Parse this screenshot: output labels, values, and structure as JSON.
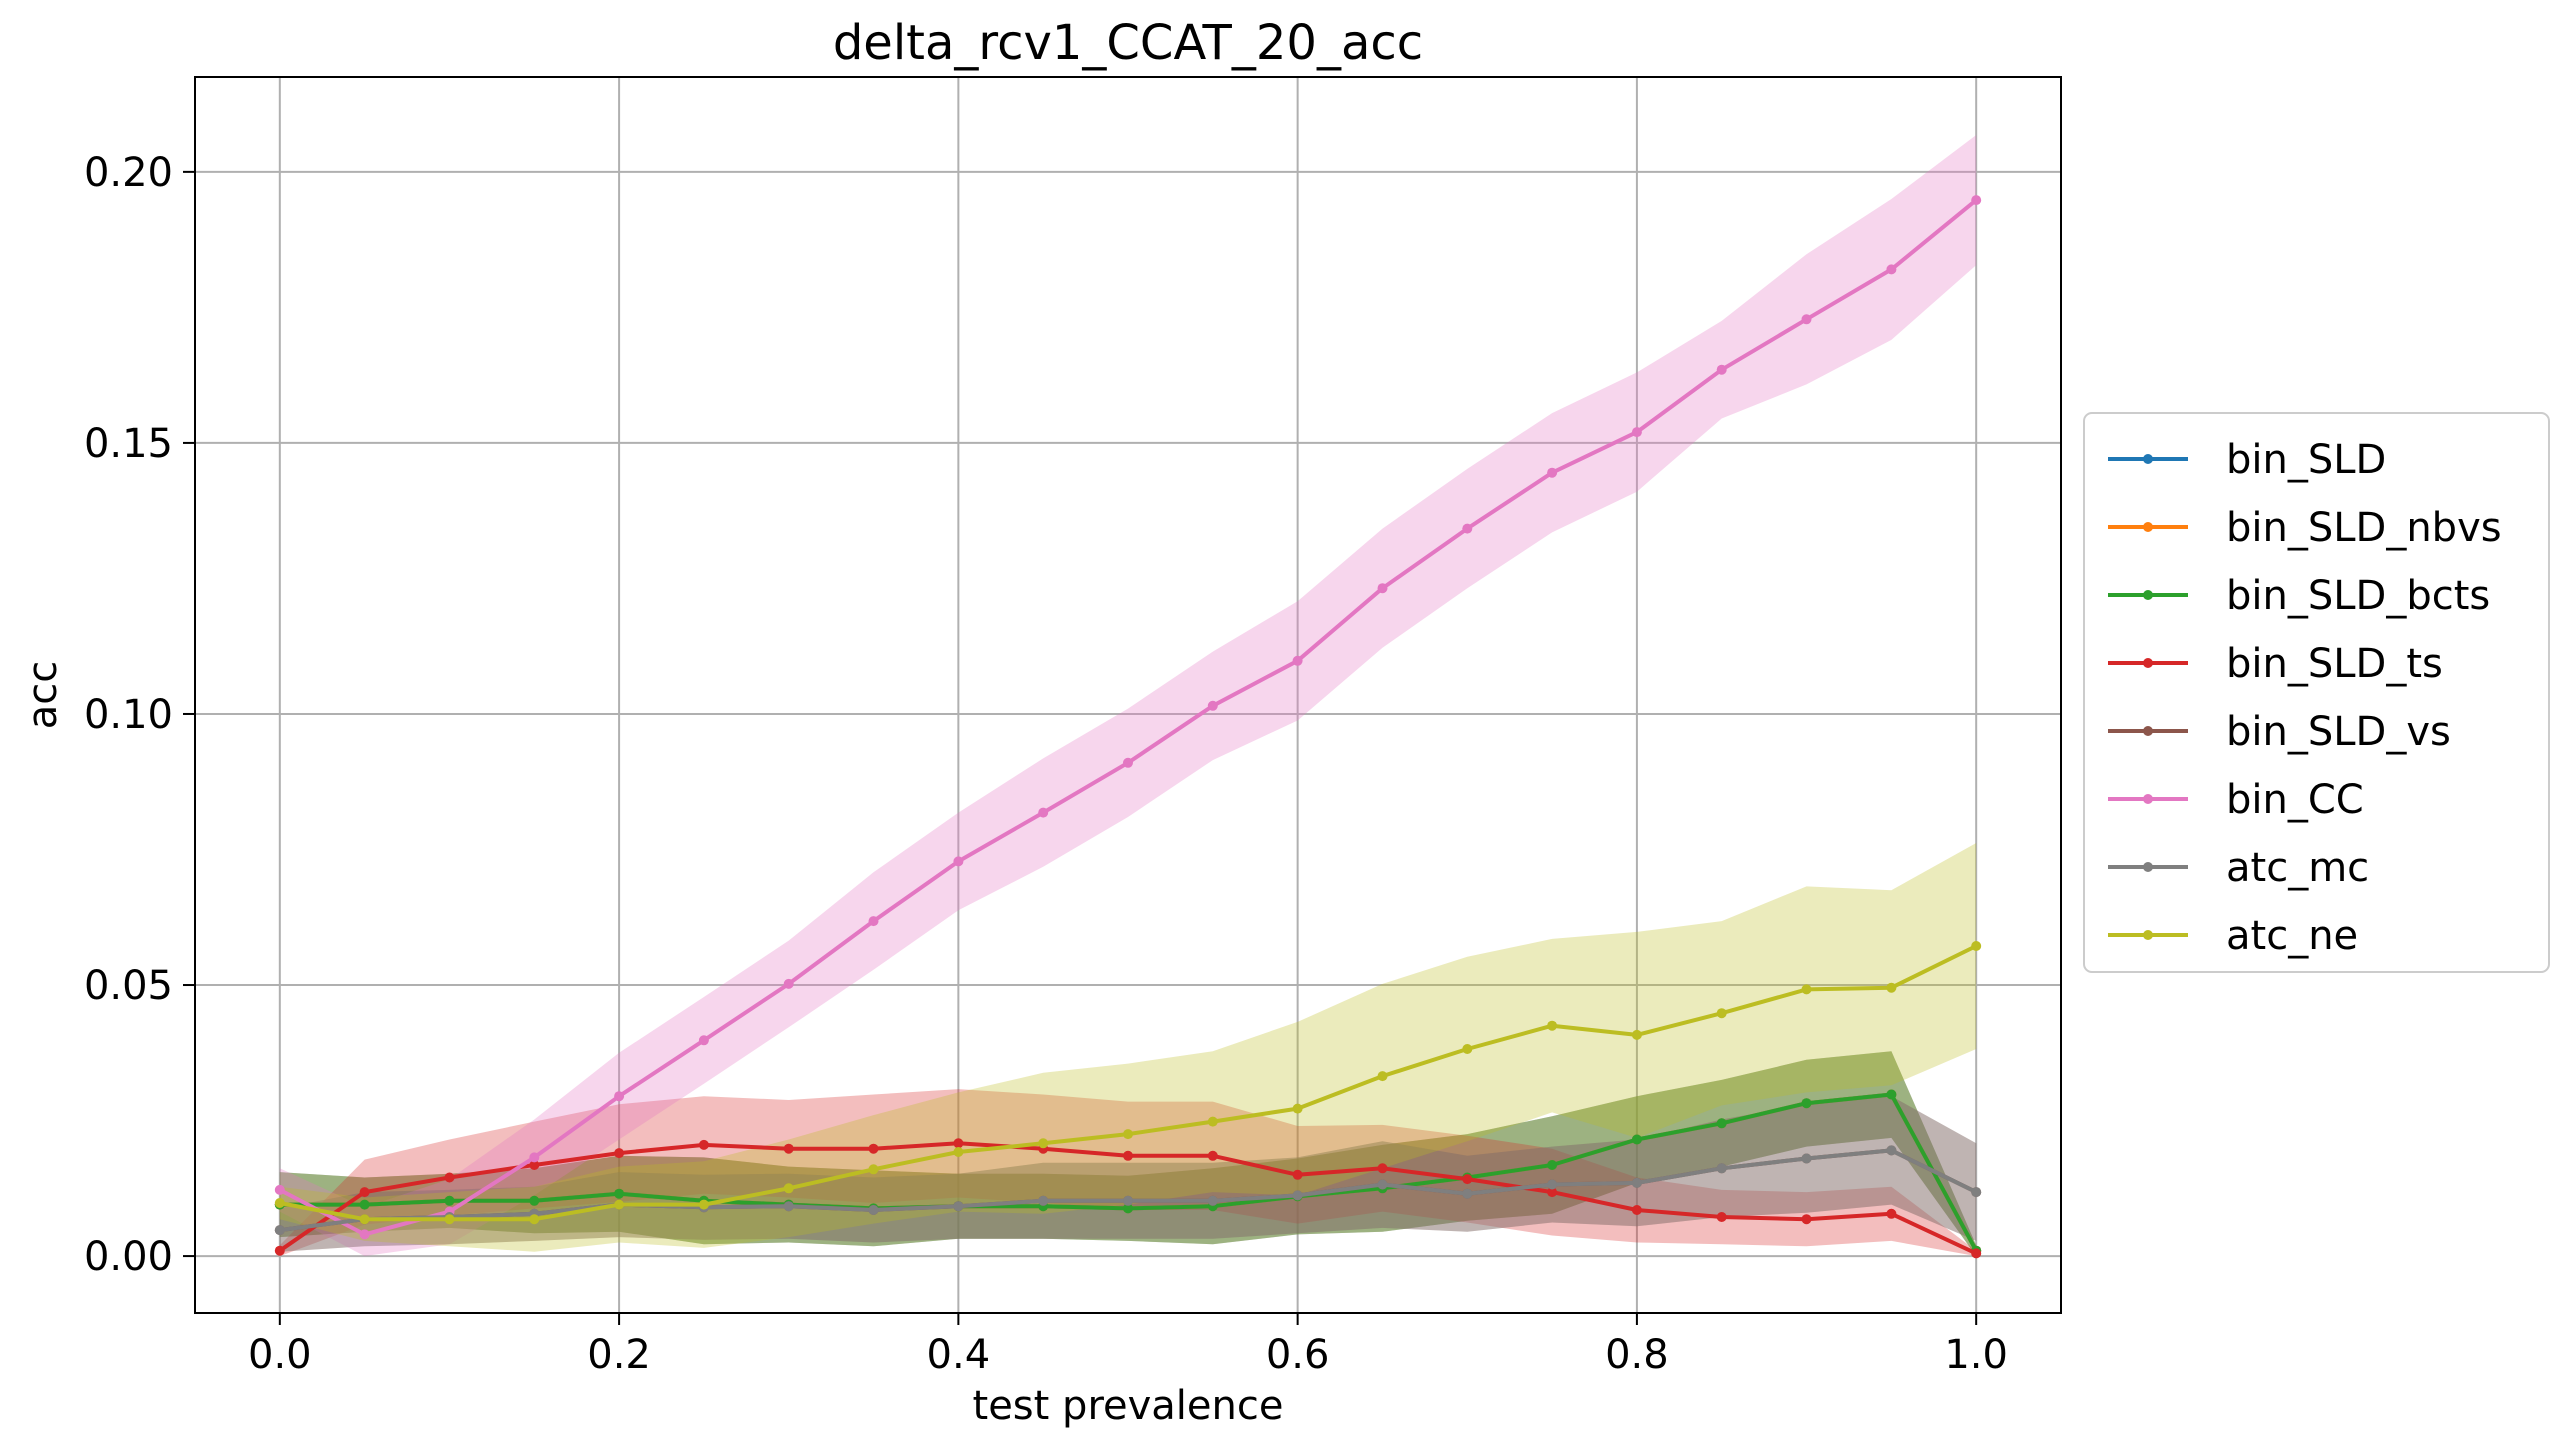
{
  "chart_data": {
    "type": "line",
    "title": "delta_rcv1_CCAT_20_acc",
    "xlabel": "test prevalence",
    "ylabel": "acc",
    "xlim": [
      -0.05,
      1.05
    ],
    "ylim": [
      -0.0105,
      0.2175
    ],
    "xticks": [
      0.0,
      0.2,
      0.4,
      0.6,
      0.8,
      1.0
    ],
    "xtick_labels": [
      "0.0",
      "0.2",
      "0.4",
      "0.6",
      "0.8",
      "1.0"
    ],
    "yticks": [
      0.0,
      0.05,
      0.1,
      0.15,
      0.2
    ],
    "ytick_labels": [
      "0.00",
      "0.05",
      "0.10",
      "0.15",
      "0.20"
    ],
    "grid": true,
    "legend_position": "center-right-outside",
    "x": [
      0.0,
      0.05,
      0.1,
      0.15,
      0.2,
      0.25,
      0.3,
      0.35,
      0.4,
      0.45,
      0.5,
      0.55,
      0.6,
      0.65,
      0.7,
      0.75,
      0.8,
      0.85,
      0.9,
      0.95,
      1.0
    ],
    "series": [
      {
        "name": "bin_SLD",
        "color": "#1f77b4",
        "values": [
          0.0095,
          0.0095,
          0.0102,
          0.0102,
          0.0115,
          0.0102,
          0.0095,
          0.0088,
          0.0092,
          0.0092,
          0.0088,
          0.0092,
          0.011,
          0.0125,
          0.0145,
          0.0168,
          0.0215,
          0.0245,
          0.0282,
          0.0298,
          0.001
        ],
        "band": [
          0.006,
          0.005,
          0.005,
          0.006,
          0.007,
          0.008,
          0.007,
          0.007,
          0.006,
          0.006,
          0.006,
          0.007,
          0.007,
          0.008,
          0.008,
          0.009,
          0.008,
          0.008,
          0.008,
          0.008,
          0.001
        ]
      },
      {
        "name": "bin_SLD_nbvs",
        "color": "#ff7f0e",
        "values": [
          0.0095,
          0.0095,
          0.0102,
          0.0102,
          0.0115,
          0.0102,
          0.0095,
          0.0088,
          0.0092,
          0.0092,
          0.0088,
          0.0092,
          0.011,
          0.0125,
          0.0145,
          0.0168,
          0.0215,
          0.0245,
          0.0282,
          0.0298,
          0.001
        ],
        "band": [
          0.006,
          0.005,
          0.005,
          0.006,
          0.007,
          0.008,
          0.007,
          0.007,
          0.006,
          0.006,
          0.006,
          0.007,
          0.007,
          0.008,
          0.008,
          0.009,
          0.008,
          0.008,
          0.008,
          0.008,
          0.001
        ]
      },
      {
        "name": "bin_SLD_bcts",
        "color": "#2ca02c",
        "values": [
          0.0095,
          0.0095,
          0.0102,
          0.0102,
          0.0115,
          0.0102,
          0.0095,
          0.0088,
          0.0092,
          0.0092,
          0.0088,
          0.0092,
          0.011,
          0.0125,
          0.0145,
          0.0168,
          0.0215,
          0.0245,
          0.0282,
          0.0298,
          0.001
        ],
        "band": [
          0.006,
          0.005,
          0.005,
          0.006,
          0.007,
          0.008,
          0.007,
          0.007,
          0.006,
          0.006,
          0.006,
          0.007,
          0.007,
          0.008,
          0.008,
          0.009,
          0.008,
          0.008,
          0.008,
          0.008,
          0.001
        ]
      },
      {
        "name": "bin_SLD_ts",
        "color": "#d62728",
        "values": [
          0.001,
          0.0118,
          0.0145,
          0.0168,
          0.019,
          0.0205,
          0.0198,
          0.0198,
          0.0208,
          0.0198,
          0.0185,
          0.0185,
          0.015,
          0.0162,
          0.0142,
          0.0118,
          0.0085,
          0.0072,
          0.0068,
          0.0078,
          0.0005
        ],
        "band": [
          0.001,
          0.006,
          0.007,
          0.008,
          0.009,
          0.009,
          0.009,
          0.01,
          0.01,
          0.01,
          0.01,
          0.01,
          0.009,
          0.008,
          0.008,
          0.008,
          0.006,
          0.005,
          0.005,
          0.005,
          0.0005
        ]
      },
      {
        "name": "bin_SLD_vs",
        "color": "#8c564b",
        "values": [
          0.0048,
          0.0068,
          0.0072,
          0.0078,
          0.0095,
          0.009,
          0.0092,
          0.0085,
          0.0092,
          0.0102,
          0.0102,
          0.0102,
          0.0112,
          0.0132,
          0.0115,
          0.0132,
          0.0135,
          0.0162,
          0.018,
          0.0195,
          0.0118
        ],
        "band": [
          0.004,
          0.005,
          0.005,
          0.005,
          0.006,
          0.006,
          0.006,
          0.006,
          0.006,
          0.007,
          0.007,
          0.007,
          0.007,
          0.008,
          0.007,
          0.007,
          0.008,
          0.009,
          0.01,
          0.01,
          0.009
        ]
      },
      {
        "name": "bin_CC",
        "color": "#e377c2",
        "values": [
          0.0122,
          0.004,
          0.0082,
          0.0182,
          0.0295,
          0.0398,
          0.0502,
          0.0618,
          0.0728,
          0.0818,
          0.091,
          0.1015,
          0.1098,
          0.1232,
          0.1342,
          0.1445,
          0.152,
          0.1635,
          0.1728,
          0.182,
          0.1948
        ],
        "band": [
          0.004,
          0.005,
          0.006,
          0.007,
          0.008,
          0.008,
          0.008,
          0.009,
          0.009,
          0.01,
          0.01,
          0.01,
          0.011,
          0.011,
          0.011,
          0.011,
          0.011,
          0.009,
          0.012,
          0.013,
          0.012
        ]
      },
      {
        "name": "atc_mc",
        "color": "#7f7f7f",
        "values": [
          0.0048,
          0.0068,
          0.0072,
          0.0078,
          0.0095,
          0.009,
          0.0092,
          0.0085,
          0.0092,
          0.0102,
          0.0102,
          0.0102,
          0.0112,
          0.0132,
          0.0115,
          0.0132,
          0.0135,
          0.0162,
          0.018,
          0.0195,
          0.0118
        ],
        "band": [
          0.004,
          0.005,
          0.005,
          0.005,
          0.006,
          0.006,
          0.006,
          0.006,
          0.006,
          0.007,
          0.007,
          0.007,
          0.007,
          0.008,
          0.007,
          0.007,
          0.008,
          0.009,
          0.01,
          0.01,
          0.009
        ]
      },
      {
        "name": "atc_ne",
        "color": "#bcbd22",
        "values": [
          0.0098,
          0.0068,
          0.0068,
          0.0068,
          0.0095,
          0.0095,
          0.0125,
          0.016,
          0.0192,
          0.0208,
          0.0225,
          0.0248,
          0.0272,
          0.0332,
          0.0382,
          0.0425,
          0.0408,
          0.0448,
          0.0492,
          0.0495,
          0.0572
        ],
        "band": [
          0.003,
          0.004,
          0.005,
          0.006,
          0.007,
          0.008,
          0.009,
          0.01,
          0.011,
          0.013,
          0.013,
          0.013,
          0.016,
          0.017,
          0.017,
          0.016,
          0.019,
          0.017,
          0.019,
          0.018,
          0.019
        ]
      }
    ]
  }
}
